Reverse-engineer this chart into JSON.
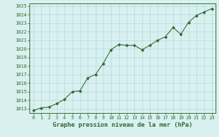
{
  "x": [
    0,
    1,
    2,
    3,
    4,
    5,
    6,
    7,
    8,
    9,
    10,
    11,
    12,
    13,
    14,
    15,
    16,
    17,
    18,
    19,
    20,
    21,
    22,
    23
  ],
  "y": [
    1012.8,
    1013.1,
    1013.2,
    1013.6,
    1014.1,
    1015.0,
    1015.1,
    1016.6,
    1017.0,
    1018.3,
    1019.9,
    1020.5,
    1020.4,
    1020.4,
    1019.9,
    1020.4,
    1021.0,
    1021.4,
    1022.5,
    1021.7,
    1023.1,
    1023.9,
    1024.3,
    1024.7
  ],
  "line_color": "#2d6a2d",
  "marker": "D",
  "marker_size": 2,
  "bg_color": "#d9f0f0",
  "grid_color": "#b0d8d8",
  "ylim_min": 1012.5,
  "ylim_max": 1025.3,
  "yticks": [
    1013,
    1014,
    1015,
    1016,
    1017,
    1018,
    1019,
    1020,
    1021,
    1022,
    1023,
    1024,
    1025
  ],
  "xticks": [
    0,
    1,
    2,
    3,
    4,
    5,
    6,
    7,
    8,
    9,
    10,
    11,
    12,
    13,
    14,
    15,
    16,
    17,
    18,
    19,
    20,
    21,
    22,
    23
  ],
  "xlabel": "Graphe pression niveau de la mer (hPa)",
  "xlabel_fontsize": 6.5,
  "tick_fontsize": 5.0,
  "line_color2": "#2d6a2d",
  "line_width": 0.8,
  "spine_color": "#2d6a2d",
  "font_family": "monospace"
}
